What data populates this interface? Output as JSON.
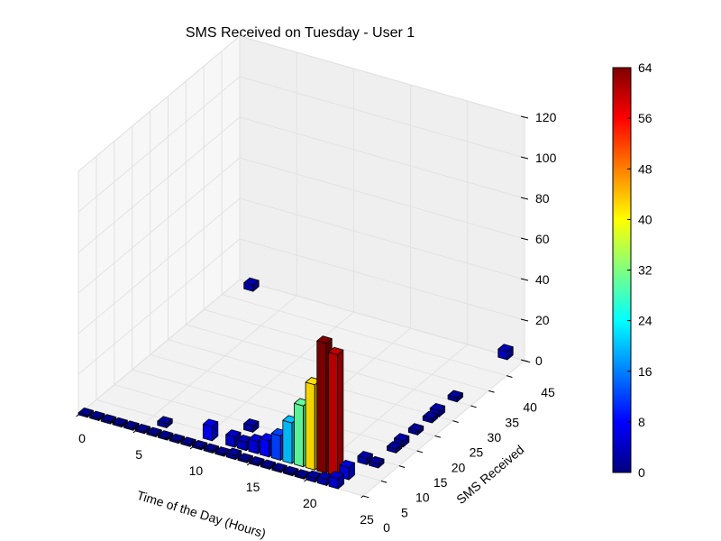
{
  "chart_data": {
    "type": "bar3d",
    "title": "SMS Received on Tuesday - User 1",
    "xlabel": "Time of the Day (Hours)",
    "ylabel": "SMS Received",
    "zlabel": "",
    "xlim": [
      0,
      25
    ],
    "ylim": [
      0,
      45
    ],
    "zlim": [
      0,
      120
    ],
    "x_ticks": [
      "0",
      "5",
      "10",
      "15",
      "20",
      "25"
    ],
    "y_ticks": [
      "0",
      "5",
      "10",
      "15",
      "20",
      "25",
      "30",
      "35",
      "40",
      "45"
    ],
    "z_ticks": [
      "0",
      "20",
      "40",
      "60",
      "80",
      "100",
      "120"
    ],
    "colormap": "jet",
    "colorbar": {
      "min": 0,
      "max": 64,
      "ticks": [
        "0",
        "8",
        "16",
        "24",
        "32",
        "40",
        "48",
        "56",
        "64"
      ]
    },
    "grid": true,
    "bars": [
      {
        "x": 0,
        "y": 0,
        "z": 1
      },
      {
        "x": 1,
        "y": 0,
        "z": 1
      },
      {
        "x": 2,
        "y": 0,
        "z": 1
      },
      {
        "x": 3,
        "y": 0,
        "z": 1
      },
      {
        "x": 4,
        "y": 0,
        "z": 1
      },
      {
        "x": 5,
        "y": 0,
        "z": 1
      },
      {
        "x": 6,
        "y": 0,
        "z": 1
      },
      {
        "x": 7,
        "y": 0,
        "z": 1
      },
      {
        "x": 8,
        "y": 0,
        "z": 1
      },
      {
        "x": 9,
        "y": 0,
        "z": 1
      },
      {
        "x": 10,
        "y": 0,
        "z": 1
      },
      {
        "x": 11,
        "y": 0,
        "z": 1
      },
      {
        "x": 12,
        "y": 0,
        "z": 1
      },
      {
        "x": 13,
        "y": 0,
        "z": 2
      },
      {
        "x": 14,
        "y": 0,
        "z": 1
      },
      {
        "x": 15,
        "y": 0,
        "z": 1
      },
      {
        "x": 16,
        "y": 0,
        "z": 1
      },
      {
        "x": 17,
        "y": 0,
        "z": 1
      },
      {
        "x": 18,
        "y": 0,
        "z": 1
      },
      {
        "x": 19,
        "y": 0,
        "z": 1
      },
      {
        "x": 20,
        "y": 0,
        "z": 2
      },
      {
        "x": 21,
        "y": 0,
        "z": 3
      },
      {
        "x": 22,
        "y": 0,
        "z": 5
      },
      {
        "x": 6,
        "y": 3,
        "z": 2
      },
      {
        "x": 10,
        "y": 3,
        "z": 7
      },
      {
        "x": 12,
        "y": 3,
        "z": 5
      },
      {
        "x": 13,
        "y": 3,
        "z": 4
      },
      {
        "x": 14,
        "y": 3,
        "z": 6
      },
      {
        "x": 15,
        "y": 3,
        "z": 8
      },
      {
        "x": 16,
        "y": 3,
        "z": 12
      },
      {
        "x": 17,
        "y": 3,
        "z": 20
      },
      {
        "x": 18,
        "y": 3,
        "z": 30
      },
      {
        "x": 19,
        "y": 3,
        "z": 42
      },
      {
        "x": 20,
        "y": 3,
        "z": 64
      },
      {
        "x": 21,
        "y": 3,
        "z": 60
      },
      {
        "x": 22,
        "y": 3,
        "z": 6
      },
      {
        "x": 12,
        "y": 8,
        "z": 3
      },
      {
        "x": 16,
        "y": 8,
        "z": 2
      },
      {
        "x": 17,
        "y": 8,
        "z": 3
      },
      {
        "x": 22,
        "y": 8,
        "z": 3
      },
      {
        "x": 23,
        "y": 8,
        "z": 2
      },
      {
        "x": 23,
        "y": 13,
        "z": 2
      },
      {
        "x": 23,
        "y": 15,
        "z": 3
      },
      {
        "x": 23,
        "y": 19,
        "z": 2
      },
      {
        "x": 23,
        "y": 23,
        "z": 2
      },
      {
        "x": 23,
        "y": 25,
        "z": 3
      },
      {
        "x": 23,
        "y": 30,
        "z": 2
      },
      {
        "x": 1,
        "y": 43,
        "z": 3
      },
      {
        "x": 23,
        "y": 44,
        "z": 4
      }
    ]
  }
}
